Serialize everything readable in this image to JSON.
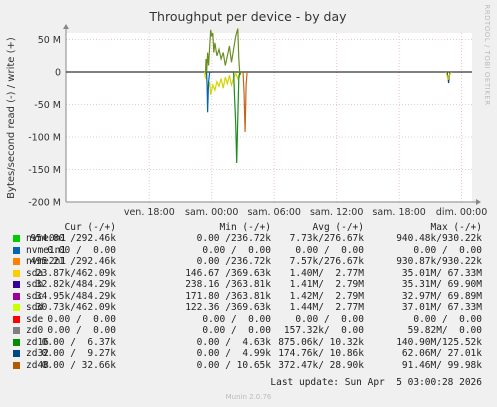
{
  "chart_data": {
    "type": "line",
    "title": "Throughput per device - by day",
    "ylabel": "Bytes/second read (-) / write (+)",
    "side_label": "RRDTOOL / TOBI OETIKER",
    "ylim": [
      -200000000,
      60000000
    ],
    "yticks": [
      {
        "v": 50000000,
        "label": "50 M"
      },
      {
        "v": 0,
        "label": "0"
      },
      {
        "v": -50000000,
        "label": "-50 M"
      },
      {
        "v": -100000000,
        "label": "-100 M"
      },
      {
        "v": -150000000,
        "label": "-150 M"
      },
      {
        "v": -200000000,
        "label": "-200 M"
      }
    ],
    "xticks": [
      "ven. 18:00",
      "sam. 00:00",
      "sam. 06:00",
      "sam. 12:00",
      "sam. 18:00",
      "dim. 00:00"
    ],
    "x_hours_range": [
      -8,
      31
    ],
    "xtick_hours": [
      0,
      6,
      12,
      18,
      24,
      30
    ],
    "series": [
      {
        "name": "sdc",
        "color": "#6b8e23",
        "points": [
          [
            5.3,
            0
          ],
          [
            5.4,
            -3000000.0
          ],
          [
            5.45,
            20000000.0
          ],
          [
            5.5,
            -5000000.0
          ],
          [
            5.6,
            30000000.0
          ],
          [
            5.7,
            10000000.0
          ],
          [
            5.8,
            40000000.0
          ],
          [
            5.9,
            65000000.0
          ],
          [
            6.0,
            55000000.0
          ],
          [
            6.1,
            60000000.0
          ],
          [
            6.2,
            30000000.0
          ],
          [
            6.3,
            45000000.0
          ],
          [
            6.5,
            25000000.0
          ],
          [
            6.7,
            35000000.0
          ],
          [
            6.9,
            20000000.0
          ],
          [
            7.1,
            30000000.0
          ],
          [
            7.3,
            10000000.0
          ],
          [
            7.5,
            25000000.0
          ],
          [
            7.7,
            40000000.0
          ],
          [
            7.9,
            15000000.0
          ],
          [
            8.1,
            35000000.0
          ],
          [
            8.3,
            55000000.0
          ],
          [
            8.5,
            67000000.0
          ],
          [
            8.6,
            20000000.0
          ],
          [
            8.7,
            -5000000.0
          ],
          [
            8.8,
            0
          ]
        ]
      },
      {
        "name": "sdb",
        "color": "#d4d400",
        "points": [
          [
            5.3,
            0
          ],
          [
            5.4,
            -10000000.0
          ],
          [
            5.5,
            -3000000.0
          ],
          [
            5.6,
            -30000000.0
          ],
          [
            5.8,
            -15000000.0
          ],
          [
            5.9,
            -35000000.0
          ],
          [
            6.1,
            -20000000.0
          ],
          [
            6.3,
            -28000000.0
          ],
          [
            6.5,
            -15000000.0
          ],
          [
            6.7,
            -22000000.0
          ],
          [
            6.9,
            -10000000.0
          ],
          [
            7.1,
            -25000000.0
          ],
          [
            7.3,
            -8000000.0
          ],
          [
            7.5,
            -18000000.0
          ],
          [
            7.7,
            -5000000.0
          ],
          [
            7.9,
            -20000000.0
          ],
          [
            8.1,
            -10000000.0
          ],
          [
            8.3,
            -2000000.0
          ],
          [
            8.5,
            -10000000.0
          ],
          [
            8.7,
            0
          ]
        ]
      },
      {
        "name": "zd16",
        "color": "#1e8c1e",
        "points": [
          [
            8.1,
            0
          ],
          [
            8.2,
            -40000000.0
          ],
          [
            8.3,
            -80000000.0
          ],
          [
            8.4,
            -140000000.0
          ],
          [
            8.5,
            -70000000.0
          ],
          [
            8.6,
            -10000000.0
          ],
          [
            8.7,
            0
          ]
        ]
      },
      {
        "name": "nvme1n1",
        "color": "#0066b3",
        "points": [
          [
            5.5,
            0
          ],
          [
            5.55,
            -20000000.0
          ],
          [
            5.6,
            -62000000.0
          ],
          [
            5.7,
            -15000000.0
          ],
          [
            5.8,
            0
          ]
        ]
      },
      {
        "name": "zd48",
        "color": "#c8621a",
        "points": [
          [
            9.0,
            0
          ],
          [
            9.1,
            -30000000.0
          ],
          [
            9.2,
            -92000000.0
          ],
          [
            9.3,
            -20000000.0
          ],
          [
            9.4,
            0
          ]
        ]
      },
      {
        "name": "zd0",
        "color": "#1a3a8a",
        "points": [
          [
            28.6,
            0
          ],
          [
            28.7,
            -10000000.0
          ],
          [
            28.75,
            -17000000.0
          ],
          [
            28.8,
            -8000000.0
          ],
          [
            28.9,
            0
          ]
        ]
      },
      {
        "name": "sdd",
        "color": "#c8c800",
        "points": [
          [
            28.5,
            0
          ],
          [
            28.6,
            -5000000.0
          ],
          [
            28.7,
            -12000000.0
          ],
          [
            28.8,
            -6000000.0
          ],
          [
            29.0,
            0
          ]
        ]
      }
    ],
    "legend": {
      "headers": [
        "Cur (-/+)",
        "Min (-/+)",
        "Avg (-/+)",
        "Max (-/+)"
      ],
      "rows": [
        {
          "name": "nvme0n1",
          "color": "#00cc00",
          "cur": "954.80 /292.46k",
          "min": "0.00 /236.72k",
          "avg": "7.73k/276.67k",
          "max": "940.48k/930.22k"
        },
        {
          "name": "nvme1n1",
          "color": "#0066b3",
          "cur": "0.00 /  0.00",
          "min": "0.00 /  0.00",
          "avg": "0.00 /  0.00",
          "max": "0.00 /  0.00"
        },
        {
          "name": "nvme2n1",
          "color": "#ff8000",
          "cur": "495.21 /292.46k",
          "min": "0.00 /236.72k",
          "avg": "7.57k/276.67k",
          "max": "930.87k/930.22k"
        },
        {
          "name": "sda",
          "color": "#ffcc00",
          "cur": "23.87k/462.09k",
          "min": "146.67 /369.63k",
          "avg": "1.40M/  2.77M",
          "max": "35.01M/ 67.33M"
        },
        {
          "name": "sdb",
          "color": "#330099",
          "cur": "32.82k/484.29k",
          "min": "238.16 /363.81k",
          "avg": "1.41M/  2.79M",
          "max": "35.31M/ 69.90M"
        },
        {
          "name": "sdc",
          "color": "#990099",
          "cur": "34.95k/484.29k",
          "min": "171.80 /363.81k",
          "avg": "1.42M/  2.79M",
          "max": "32.97M/ 69.89M"
        },
        {
          "name": "sdd",
          "color": "#ccff00",
          "cur": "30.73k/462.09k",
          "min": "122.36 /369.63k",
          "avg": "1.44M/  2.77M",
          "max": "37.01M/ 67.33M"
        },
        {
          "name": "sde",
          "color": "#ff0000",
          "cur": "0.00 /  0.00",
          "min": "0.00 /  0.00",
          "avg": "0.00 /  0.00",
          "max": "0.00 /  0.00"
        },
        {
          "name": "zd0",
          "color": "#808080",
          "cur": "0.00 /  0.00",
          "min": "0.00 /  0.00",
          "avg": "157.32k/  0.00",
          "max": "59.82M/  0.00"
        },
        {
          "name": "zd16",
          "color": "#008f00",
          "cur": "0.00 /  6.37k",
          "min": "0.00 /  4.63k",
          "avg": "875.06k/ 10.32k",
          "max": "140.90M/125.52k"
        },
        {
          "name": "zd32",
          "color": "#00487d",
          "cur": "0.00 /  9.27k",
          "min": "0.00 /  4.99k",
          "avg": "174.76k/ 10.86k",
          "max": "62.06M/ 27.01k"
        },
        {
          "name": "zd48",
          "color": "#b35a00",
          "cur": "0.00 / 32.66k",
          "min": "0.00 / 10.65k",
          "avg": "372.47k/ 28.90k",
          "max": "91.46M/ 99.98k"
        }
      ]
    },
    "last_update": "Last update: Sun Apr  5 03:00:28 2026",
    "footer": "Munin 2.0.76"
  }
}
